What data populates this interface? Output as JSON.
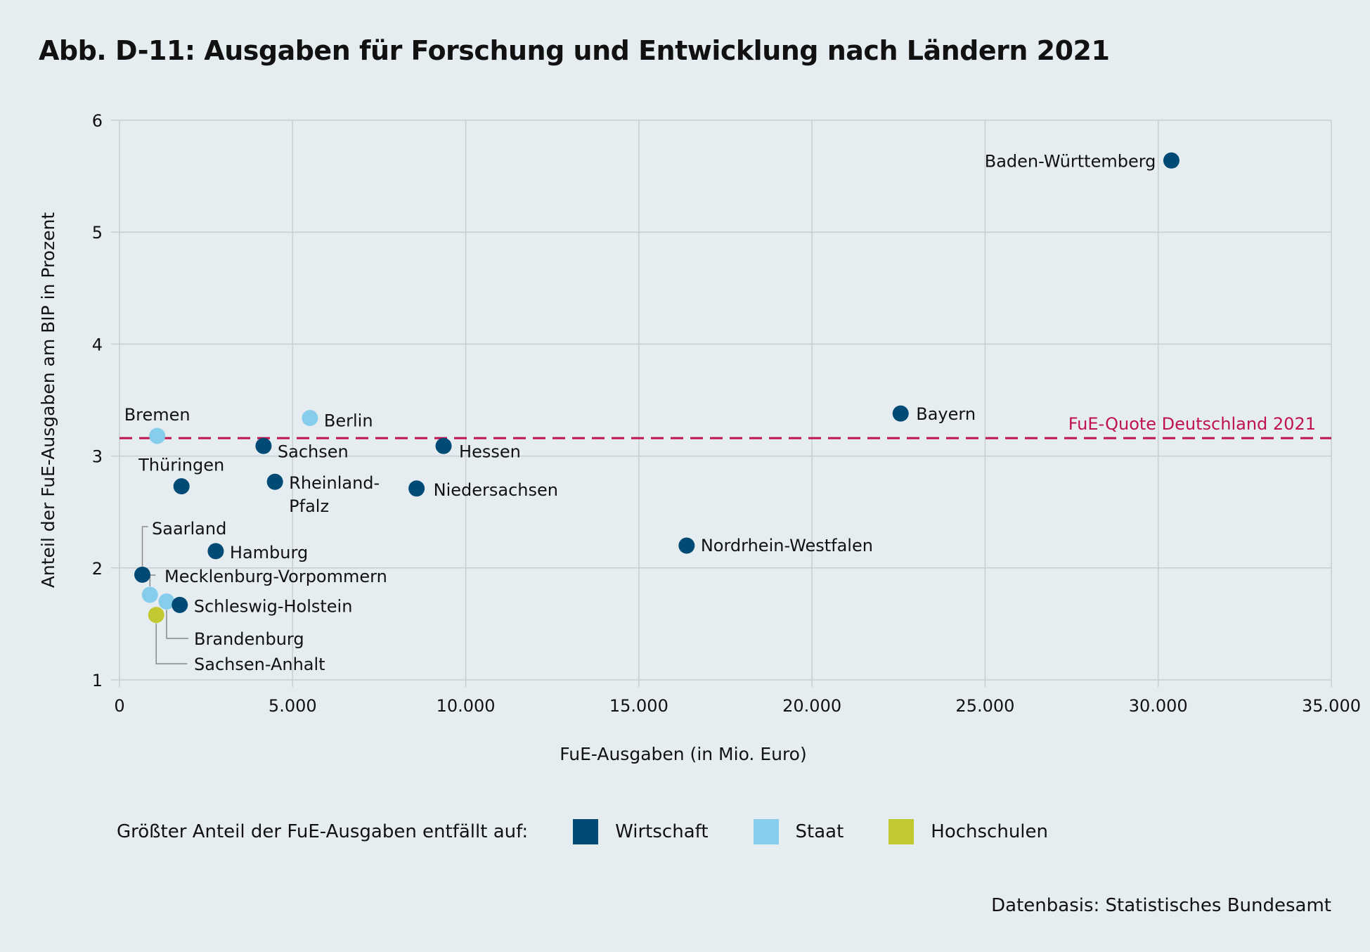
{
  "title": "Abb. D-11: Ausgaben für Forschung und Entwicklung nach Ländern 2021",
  "source": "Datenbasis: Statistisches Bundesamt",
  "legend": {
    "title": "Größter Anteil der FuE-Ausgaben entfällt auf:",
    "items": [
      {
        "label": "Wirtschaft",
        "color": "#004a76"
      },
      {
        "label": "Staat",
        "color": "#86cdec"
      },
      {
        "label": "Hochschulen",
        "color": "#c2c930"
      }
    ]
  },
  "chart_data": {
    "type": "scatter",
    "title": "Abb. D-11: Ausgaben für Forschung und Entwicklung nach Ländern 2021",
    "xlabel": "FuE-Ausgaben (in Mio. Euro)",
    "ylabel": "Anteil der FuE-Ausgaben am BIP in Prozent",
    "xlim": [
      0,
      35000
    ],
    "ylim": [
      1,
      6
    ],
    "xticks": [
      0,
      5000,
      10000,
      15000,
      20000,
      25000,
      30000,
      35000
    ],
    "xtick_labels": [
      "0",
      "5.000",
      "10.000",
      "15.000",
      "20.000",
      "25.000",
      "30.000",
      "35.000"
    ],
    "yticks": [
      1,
      2,
      3,
      4,
      5,
      6
    ],
    "ytick_labels": [
      "1",
      "2",
      "3",
      "4",
      "5",
      "6"
    ],
    "grid": true,
    "legend_position": "bottom",
    "reference_line": {
      "label": "FuE-Quote Deutschland 2021",
      "y": 3.16,
      "color": "#c0124c"
    },
    "categories": {
      "Wirtschaft": "#004a76",
      "Staat": "#86cdec",
      "Hochschulen": "#c2c930"
    },
    "points": [
      {
        "label": "Baden-Württemberg",
        "x": 30380,
        "y": 5.64,
        "category": "Wirtschaft"
      },
      {
        "label": "Bayern",
        "x": 22560,
        "y": 3.38,
        "category": "Wirtschaft"
      },
      {
        "label": "Hessen",
        "x": 9360,
        "y": 3.09,
        "category": "Wirtschaft"
      },
      {
        "label": "Niedersachsen",
        "x": 8580,
        "y": 2.71,
        "category": "Wirtschaft"
      },
      {
        "label": "Nordrhein-Westfalen",
        "x": 16380,
        "y": 2.2,
        "category": "Wirtschaft"
      },
      {
        "label": "Berlin",
        "x": 5500,
        "y": 3.34,
        "category": "Staat"
      },
      {
        "label": "Sachsen",
        "x": 4160,
        "y": 3.09,
        "category": "Wirtschaft"
      },
      {
        "label": "Rheinland-Pfalz",
        "x": 4490,
        "y": 2.77,
        "category": "Wirtschaft"
      },
      {
        "label": "Bremen",
        "x": 1090,
        "y": 3.18,
        "category": "Staat"
      },
      {
        "label": "Thüringen",
        "x": 1790,
        "y": 2.73,
        "category": "Wirtschaft"
      },
      {
        "label": "Hamburg",
        "x": 2780,
        "y": 2.15,
        "category": "Wirtschaft"
      },
      {
        "label": "Saarland",
        "x": 660,
        "y": 1.94,
        "category": "Wirtschaft"
      },
      {
        "label": "Mecklenburg-Vorpommern",
        "x": 880,
        "y": 1.76,
        "category": "Staat"
      },
      {
        "label": "Brandenburg",
        "x": 1360,
        "y": 1.7,
        "category": "Staat"
      },
      {
        "label": "Schleswig-Holstein",
        "x": 1740,
        "y": 1.67,
        "category": "Wirtschaft"
      },
      {
        "label": "Sachsen-Anhalt",
        "x": 1060,
        "y": 1.58,
        "category": "Hochschulen"
      }
    ]
  }
}
